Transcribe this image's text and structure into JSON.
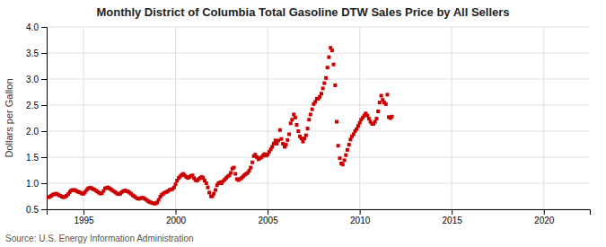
{
  "chart_data": {
    "type": "scatter",
    "title": "Monthly District of Columbia Total Gasoline DTW Sales Price by All Sellers",
    "ylabel": "Dollars per Gallon",
    "annotation": "Source: U.S. Energy Information Administration",
    "color": "#cc0000",
    "marker": "square",
    "grid": true,
    "xlim": [
      1993.0,
      2022.5
    ],
    "ylim": [
      0.5,
      4.0
    ],
    "xticks": [
      1995,
      2000,
      2005,
      2010,
      2015,
      2020
    ],
    "yticks": [
      0.5,
      {
        "value": 1,
        "label": "1.0"
      },
      1.5,
      {
        "value": 2,
        "label": "2.0"
      },
      2.5,
      {
        "value": 3,
        "label": "3.0"
      },
      3.5,
      {
        "value": 4,
        "label": "4.0"
      }
    ],
    "x": [
      1993.08,
      1993.17,
      1993.25,
      1993.33,
      1993.42,
      1993.5,
      1993.58,
      1993.67,
      1993.75,
      1993.83,
      1993.92,
      1994.0,
      1994.08,
      1994.17,
      1994.25,
      1994.33,
      1994.42,
      1994.5,
      1994.58,
      1994.67,
      1994.75,
      1994.83,
      1994.92,
      1995.0,
      1995.08,
      1995.17,
      1995.25,
      1995.33,
      1995.42,
      1995.5,
      1995.58,
      1995.67,
      1995.75,
      1995.83,
      1995.92,
      1996.0,
      1996.08,
      1996.17,
      1996.25,
      1996.33,
      1996.42,
      1996.5,
      1996.58,
      1996.67,
      1996.75,
      1996.83,
      1996.92,
      1997.0,
      1997.08,
      1997.17,
      1997.25,
      1997.33,
      1997.42,
      1997.5,
      1997.58,
      1997.67,
      1997.75,
      1997.83,
      1997.92,
      1998.0,
      1998.08,
      1998.17,
      1998.25,
      1998.33,
      1998.42,
      1998.5,
      1998.58,
      1998.67,
      1998.75,
      1998.83,
      1998.92,
      1999.0,
      1999.08,
      1999.17,
      1999.25,
      1999.33,
      1999.42,
      1999.5,
      1999.58,
      1999.67,
      1999.75,
      1999.83,
      1999.92,
      2000.0,
      2000.08,
      2000.17,
      2000.25,
      2000.33,
      2000.42,
      2000.5,
      2000.58,
      2000.67,
      2000.75,
      2000.83,
      2000.92,
      2001.0,
      2001.08,
      2001.17,
      2001.25,
      2001.33,
      2001.42,
      2001.5,
      2001.58,
      2001.67,
      2001.75,
      2001.83,
      2001.92,
      2002.0,
      2002.08,
      2002.17,
      2002.25,
      2002.33,
      2002.42,
      2002.5,
      2002.58,
      2002.67,
      2002.75,
      2002.83,
      2002.92,
      2003.0,
      2003.08,
      2003.17,
      2003.25,
      2003.33,
      2003.42,
      2003.5,
      2003.58,
      2003.67,
      2003.75,
      2003.83,
      2003.92,
      2004.0,
      2004.08,
      2004.17,
      2004.25,
      2004.33,
      2004.42,
      2004.5,
      2004.58,
      2004.67,
      2004.75,
      2004.83,
      2004.92,
      2005.0,
      2005.08,
      2005.17,
      2005.25,
      2005.33,
      2005.42,
      2005.5,
      2005.58,
      2005.67,
      2005.75,
      2005.83,
      2005.92,
      2006.0,
      2006.08,
      2006.17,
      2006.25,
      2006.33,
      2006.42,
      2006.5,
      2006.58,
      2006.67,
      2006.75,
      2006.83,
      2006.92,
      2007.0,
      2007.08,
      2007.17,
      2007.25,
      2007.33,
      2007.42,
      2007.5,
      2007.58,
      2007.67,
      2007.75,
      2007.83,
      2007.92,
      2008.0,
      2008.08,
      2008.17,
      2008.25,
      2008.33,
      2008.42,
      2008.5,
      2008.58,
      2008.67,
      2008.75,
      2008.83,
      2008.92,
      2009.0,
      2009.08,
      2009.17,
      2009.25,
      2009.33,
      2009.42,
      2009.5,
      2009.58,
      2009.67,
      2009.75,
      2009.83,
      2009.92,
      2010.0,
      2010.08,
      2010.17,
      2010.25,
      2010.33,
      2010.42,
      2010.5,
      2010.58,
      2010.67,
      2010.75,
      2010.83,
      2010.92,
      2011.0,
      2011.08,
      2011.17,
      2011.25,
      2011.33,
      2011.42,
      2011.5,
      2011.58,
      2011.67,
      2011.75
    ],
    "values": [
      0.73,
      0.74,
      0.76,
      0.78,
      0.79,
      0.8,
      0.79,
      0.77,
      0.76,
      0.74,
      0.73,
      0.74,
      0.76,
      0.79,
      0.83,
      0.86,
      0.87,
      0.87,
      0.86,
      0.84,
      0.83,
      0.82,
      0.8,
      0.8,
      0.83,
      0.87,
      0.9,
      0.91,
      0.91,
      0.89,
      0.88,
      0.86,
      0.84,
      0.82,
      0.8,
      0.81,
      0.85,
      0.9,
      0.91,
      0.92,
      0.9,
      0.88,
      0.86,
      0.84,
      0.82,
      0.8,
      0.79,
      0.8,
      0.83,
      0.85,
      0.86,
      0.85,
      0.84,
      0.82,
      0.8,
      0.77,
      0.75,
      0.73,
      0.71,
      0.7,
      0.71,
      0.72,
      0.72,
      0.7,
      0.68,
      0.66,
      0.64,
      0.63,
      0.62,
      0.61,
      0.61,
      0.63,
      0.68,
      0.74,
      0.78,
      0.8,
      0.82,
      0.83,
      0.85,
      0.87,
      0.88,
      0.89,
      0.92,
      0.98,
      1.05,
      1.1,
      1.13,
      1.16,
      1.18,
      1.15,
      1.12,
      1.1,
      1.12,
      1.14,
      1.15,
      1.1,
      1.06,
      1.05,
      1.08,
      1.1,
      1.12,
      1.1,
      1.05,
      1.0,
      0.92,
      0.82,
      0.75,
      0.75,
      0.8,
      0.87,
      0.96,
      1.0,
      1.02,
      1.0,
      1.04,
      1.07,
      1.1,
      1.13,
      1.15,
      1.2,
      1.28,
      1.3,
      1.18,
      1.08,
      1.06,
      1.08,
      1.1,
      1.13,
      1.16,
      1.18,
      1.2,
      1.24,
      1.3,
      1.4,
      1.52,
      1.55,
      1.5,
      1.46,
      1.48,
      1.5,
      1.53,
      1.56,
      1.53,
      1.55,
      1.6,
      1.65,
      1.7,
      1.76,
      1.82,
      1.76,
      1.82,
      2.02,
      1.85,
      1.76,
      1.7,
      1.74,
      1.83,
      1.94,
      2.15,
      2.22,
      2.32,
      2.26,
      2.12,
      2.0,
      1.9,
      1.86,
      1.8,
      1.86,
      1.92,
      2.05,
      2.22,
      2.32,
      2.42,
      2.52,
      2.56,
      2.62,
      2.62,
      2.66,
      2.72,
      2.82,
      2.92,
      3.02,
      3.22,
      3.42,
      3.6,
      3.55,
      3.28,
      2.88,
      2.18,
      1.72,
      1.48,
      1.38,
      1.36,
      1.44,
      1.54,
      1.64,
      1.74,
      1.84,
      1.9,
      1.94,
      2.0,
      2.04,
      2.1,
      2.16,
      2.22,
      2.26,
      2.3,
      2.34,
      2.3,
      2.24,
      2.18,
      2.14,
      2.14,
      2.18,
      2.24,
      2.38,
      2.55,
      2.68,
      2.6,
      2.55,
      2.52,
      2.7,
      2.27,
      2.25,
      2.28
    ]
  }
}
